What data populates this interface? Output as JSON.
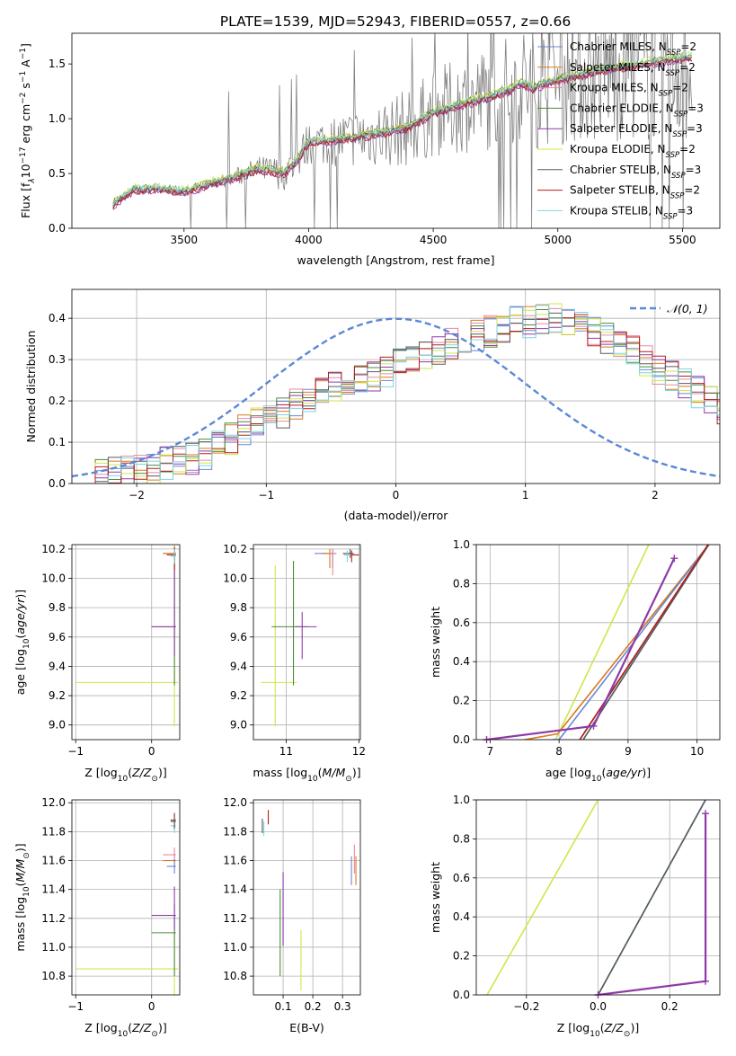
{
  "figure_title": "PLATE=1539, MJD=52943, FIBERID=0557, z=0.66",
  "colors": {
    "Chabrier MILES": "#6a87d4",
    "Salpeter MILES": "#d97a1e",
    "Kroupa MILES": "#e88aa4",
    "Chabrier ELODIE": "#4e8a3c",
    "Salpeter ELODIE": "#8e3aa8",
    "Kroupa ELODIE": "#cfe64a",
    "Chabrier STELIB": "#5a5a5a",
    "Salpeter STELIB": "#b41e1e",
    "Kroupa STELIB": "#7fd3e0",
    "normal": "#5b88d6",
    "data": "#808080"
  },
  "chart_data": [
    {
      "id": "spectrum",
      "type": "line",
      "title": "PLATE=1539, MJD=52943, FIBERID=0557, z=0.66",
      "xlabel": "wavelength [Angstrom, rest frame]",
      "ylabel": "Flux [f_λ 10^-17 erg cm^-2 s^-1 A^-1]",
      "ylabel_parts": {
        "a": "Flux [f",
        "sub": "λ",
        "b": "10",
        "sup1": "−17",
        "c": " erg cm",
        "sup2": "−2",
        "d": " s",
        "sup3": "−1",
        "e": " A",
        "sup4": "−1",
        "f": "]"
      },
      "xlim": [
        3050,
        5650
      ],
      "ylim": [
        0,
        1.78
      ],
      "xticks": [
        3500,
        4000,
        4500,
        5000,
        5500
      ],
      "yticks": [
        0.0,
        0.5,
        1.0,
        1.5
      ],
      "x_range_model": [
        3215,
        5540
      ],
      "x_range_data": [
        3215,
        5540
      ],
      "model_anchor_wavelengths": [
        3215,
        3300,
        3400,
        3500,
        3600,
        3700,
        3800,
        3900,
        3950,
        4000,
        4100,
        4200,
        4300,
        4400,
        4500,
        4600,
        4700,
        4800,
        4850,
        4900,
        5000,
        5100,
        5200,
        5300,
        5400,
        5500,
        5540
      ],
      "model_anchor_flux": [
        0.22,
        0.35,
        0.36,
        0.33,
        0.4,
        0.46,
        0.54,
        0.5,
        0.6,
        0.78,
        0.8,
        0.83,
        0.87,
        0.92,
        1.05,
        1.12,
        1.18,
        1.25,
        1.32,
        1.28,
        1.35,
        1.4,
        1.45,
        1.48,
        1.52,
        1.55,
        1.56
      ],
      "series": [
        {
          "name": "Chabrier MILES",
          "n_ssp": "2",
          "offset": 0.0
        },
        {
          "name": "Salpeter MILES",
          "n_ssp": "2",
          "offset": 0.01
        },
        {
          "name": "Kroupa MILES",
          "n_ssp": "2",
          "offset": -0.01
        },
        {
          "name": "Chabrier ELODIE",
          "n_ssp": "3",
          "offset": 0.02
        },
        {
          "name": "Salpeter ELODIE",
          "n_ssp": "3",
          "offset": -0.02
        },
        {
          "name": "Kroupa ELODIE",
          "n_ssp": "2",
          "offset": 0.03
        },
        {
          "name": "Chabrier STELIB",
          "n_ssp": "3",
          "offset": 0.0
        },
        {
          "name": "Salpeter STELIB",
          "n_ssp": "2",
          "offset": -0.015
        },
        {
          "name": "Kroupa STELIB",
          "n_ssp": "3",
          "offset": 0.015
        }
      ],
      "legend_placement": "right",
      "legend_ssp_label": "N",
      "legend_ssp_sub": "SSP",
      "grid": false
    },
    {
      "id": "residuals",
      "type": "area",
      "xlabel": "(data-model)/error",
      "ylabel": "Normed distribution",
      "xlim": [
        -2.5,
        2.5
      ],
      "ylim": [
        0,
        0.47
      ],
      "xticks": [
        -2,
        -1,
        0,
        1,
        2
      ],
      "yticks": [
        0.0,
        0.1,
        0.2,
        0.3,
        0.4
      ],
      "bin_width": 0.1,
      "normal": {
        "mean": 0,
        "sigma": 1,
        "label": "𝒩(0, 1)",
        "style": "dashed"
      },
      "hist_base": [
        0.02,
        0.02,
        0.025,
        0.03,
        0.035,
        0.04,
        0.05,
        0.055,
        0.06,
        0.07,
        0.09,
        0.11,
        0.13,
        0.15,
        0.16,
        0.17,
        0.19,
        0.2,
        0.22,
        0.23,
        0.24,
        0.25,
        0.26,
        0.27,
        0.29,
        0.3,
        0.31,
        0.32,
        0.34,
        0.35,
        0.36,
        0.37,
        0.38,
        0.39,
        0.39,
        0.4,
        0.4,
        0.39,
        0.38,
        0.37,
        0.35,
        0.34,
        0.32,
        0.3,
        0.28,
        0.26,
        0.24,
        0.22,
        0.2,
        0.18,
        0.16,
        0.14,
        0.12,
        0.11,
        0.1,
        0.09,
        0.08,
        0.07,
        0.06,
        0.05
      ],
      "hist_x_start": -2.5,
      "grid": true
    },
    {
      "id": "age_vs_Z",
      "type": "scatter",
      "xlabel": "Z [log10(Z/Z⊙)]",
      "ylabel": "age  [log10(age/yr)]",
      "xlim": [
        -1.05,
        0.37
      ],
      "ylim": [
        8.9,
        10.23
      ],
      "xticks": [
        -1,
        0
      ],
      "yticks": [
        9.0,
        9.2,
        9.4,
        9.6,
        9.8,
        10.0,
        10.2
      ],
      "points": [
        {
          "series": "Kroupa ELODIE",
          "x": 0.3,
          "y": 9.29,
          "xerr": [
            1.3,
            0.05
          ],
          "yerr": [
            0.3,
            1.0
          ]
        },
        {
          "series": "Chabrier ELODIE",
          "x": 0.3,
          "y": 9.67,
          "xerr": [
            0.3,
            0.02
          ],
          "yerr": [
            0.4,
            0.5
          ]
        },
        {
          "series": "Salpeter ELODIE",
          "x": 0.3,
          "y": 9.67,
          "xerr": [
            0.3,
            0.02
          ],
          "yerr": [
            0.2,
            0.5
          ]
        },
        {
          "series": "Chabrier MILES",
          "x": 0.3,
          "y": 10.17,
          "xerr": [
            0.15,
            0.02
          ],
          "yerr": [
            0.05,
            0.05
          ]
        },
        {
          "series": "Salpeter MILES",
          "x": 0.3,
          "y": 10.17,
          "xerr": [
            0.15,
            0.02
          ],
          "yerr": [
            0.05,
            0.05
          ]
        },
        {
          "series": "Salpeter STELIB",
          "x": 0.3,
          "y": 10.16,
          "xerr": [
            0.1,
            0.02
          ],
          "yerr": [
            0.1,
            0.05
          ]
        },
        {
          "series": "Kroupa STELIB",
          "x": 0.3,
          "y": 10.15,
          "xerr": [
            0.05,
            0.02
          ],
          "yerr": [
            0.05,
            0.05
          ]
        }
      ],
      "grid": true
    },
    {
      "id": "age_vs_mass",
      "type": "scatter",
      "xlabel": "mass [log10(M/M⊙)]",
      "ylabel": "",
      "xlim": [
        10.55,
        12.02
      ],
      "ylim": [
        8.9,
        10.23
      ],
      "xticks": [
        11,
        12
      ],
      "yticks": [
        9.0,
        9.2,
        9.4,
        9.6,
        9.8,
        10.0,
        10.2
      ],
      "points": [
        {
          "series": "Kroupa ELODIE",
          "x": 10.85,
          "y": 9.29,
          "xerr": [
            0.2,
            0.3
          ],
          "yerr": [
            0.3,
            0.8
          ]
        },
        {
          "series": "Chabrier ELODIE",
          "x": 11.1,
          "y": 9.67,
          "xerr": [
            0.3,
            0.2
          ],
          "yerr": [
            0.4,
            0.45
          ]
        },
        {
          "series": "Salpeter ELODIE",
          "x": 11.22,
          "y": 9.67,
          "xerr": [
            0.1,
            0.2
          ],
          "yerr": [
            0.22,
            0.1
          ]
        },
        {
          "series": "Chabrier MILES",
          "x": 11.64,
          "y": 10.17,
          "xerr": [
            0.25,
            0.05
          ],
          "yerr": [
            0.1,
            0.03
          ]
        },
        {
          "series": "Salpeter MILES",
          "x": 11.6,
          "y": 10.17,
          "xerr": [
            0.1,
            0.05
          ],
          "yerr": [
            0.1,
            0.03
          ]
        },
        {
          "series": "Kroupa MILES",
          "x": 11.64,
          "y": 10.17,
          "xerr": [
            0.05,
            0.05
          ],
          "yerr": [
            0.15,
            0.03
          ]
        },
        {
          "series": "Salpeter STELIB",
          "x": 11.9,
          "y": 10.16,
          "xerr": [
            0.1,
            0.1
          ],
          "yerr": [
            0.05,
            0.03
          ]
        },
        {
          "series": "Chabrier STELIB",
          "x": 11.88,
          "y": 10.17,
          "xerr": [
            0.1,
            0.05
          ],
          "yerr": [
            0.03,
            0.03
          ]
        },
        {
          "series": "Kroupa STELIB",
          "x": 11.84,
          "y": 10.16,
          "xerr": [
            0.05,
            0.05
          ],
          "yerr": [
            0.05,
            0.03
          ]
        }
      ],
      "grid": true
    },
    {
      "id": "mass_weight_vs_age",
      "type": "line",
      "xlabel": "age  [log10(age/yr)]",
      "ylabel": "mass weight",
      "xlim": [
        6.8,
        10.33
      ],
      "ylim": [
        0,
        1.0
      ],
      "xticks": [
        7,
        8,
        9,
        10
      ],
      "yticks": [
        0.0,
        0.2,
        0.4,
        0.6,
        0.8,
        1.0
      ],
      "series": [
        {
          "name": "Kroupa ELODIE",
          "x": [
            7.95,
            9.3
          ],
          "y": [
            0.0,
            1.0
          ]
        },
        {
          "name": "Salpeter MILES",
          "x": [
            7.5,
            7.98,
            10.17
          ],
          "y": [
            0.0,
            0.03,
            1.0
          ]
        },
        {
          "name": "Chabrier MILES",
          "x": [
            7.9,
            8.0,
            10.17
          ],
          "y": [
            0.0,
            0.0,
            1.0
          ]
        },
        {
          "name": "Chabrier ELODIE",
          "x": [
            8.3,
            10.17
          ],
          "y": [
            0.0,
            1.0
          ]
        },
        {
          "name": "Kroupa STELIB",
          "x": [
            8.35,
            10.16
          ],
          "y": [
            0.0,
            1.0
          ]
        },
        {
          "name": "Chabrier STELIB",
          "x": [
            8.35,
            10.17
          ],
          "y": [
            0.0,
            1.0
          ]
        },
        {
          "name": "Salpeter STELIB",
          "x": [
            8.3,
            10.16
          ],
          "y": [
            0.0,
            1.0
          ]
        },
        {
          "name": "Salpeter ELODIE",
          "x": [
            6.95,
            8.5,
            9.67
          ],
          "y": [
            0.0,
            0.07,
            0.93
          ],
          "markers": true
        }
      ],
      "grid": true
    },
    {
      "id": "mass_vs_Z",
      "type": "scatter",
      "xlabel": "Z [log10(Z/Z⊙)]",
      "ylabel": "mass [log10(M/M⊙)]",
      "xlim": [
        -1.05,
        0.37
      ],
      "ylim": [
        10.67,
        12.02
      ],
      "xticks": [
        -1,
        0
      ],
      "yticks": [
        10.8,
        11.0,
        11.2,
        11.4,
        11.6,
        11.8,
        12.0
      ],
      "points": [
        {
          "series": "Kroupa ELODIE",
          "x": 0.3,
          "y": 10.85,
          "xerr": [
            1.3,
            0.05
          ],
          "yerr": [
            0.2,
            0.3
          ]
        },
        {
          "series": "Chabrier ELODIE",
          "x": 0.3,
          "y": 11.1,
          "xerr": [
            0.3,
            0.02
          ],
          "yerr": [
            0.3,
            0.2
          ]
        },
        {
          "series": "Salpeter ELODIE",
          "x": 0.3,
          "y": 11.22,
          "xerr": [
            0.3,
            0.02
          ],
          "yerr": [
            0.1,
            0.2
          ]
        },
        {
          "series": "Salpeter MILES",
          "x": 0.3,
          "y": 11.6,
          "xerr": [
            0.15,
            0.02
          ],
          "yerr": [
            0.05,
            0.05
          ]
        },
        {
          "series": "Kroupa MILES",
          "x": 0.3,
          "y": 11.64,
          "xerr": [
            0.15,
            0.02
          ],
          "yerr": [
            0.05,
            0.05
          ]
        },
        {
          "series": "Chabrier MILES",
          "x": 0.3,
          "y": 11.56,
          "xerr": [
            0.1,
            0.02
          ],
          "yerr": [
            0.05,
            0.05
          ]
        },
        {
          "series": "Salpeter STELIB",
          "x": 0.3,
          "y": 11.88,
          "xerr": [
            0.05,
            0.02
          ],
          "yerr": [
            0.05,
            0.05
          ]
        },
        {
          "series": "Kroupa STELIB",
          "x": 0.3,
          "y": 11.84,
          "xerr": [
            0.05,
            0.02
          ],
          "yerr": [
            0.05,
            0.05
          ]
        },
        {
          "series": "Chabrier STELIB",
          "x": 0.3,
          "y": 11.87,
          "xerr": [
            0.05,
            0.02
          ],
          "yerr": [
            0.05,
            0.05
          ]
        }
      ],
      "grid": true
    },
    {
      "id": "mass_vs_ebv",
      "type": "scatter",
      "xlabel": "E(B-V)",
      "ylabel": "",
      "xlim": [
        0.0,
        0.36
      ],
      "ylim": [
        10.67,
        12.02
      ],
      "xticks": [
        0.1,
        0.2,
        0.3
      ],
      "yticks": [
        10.8,
        11.0,
        11.2,
        11.4,
        11.6,
        11.8,
        12.0
      ],
      "points": [
        {
          "series": "Kroupa ELODIE",
          "x": 0.16,
          "y": 10.9,
          "yerr": [
            0.2,
            0.22
          ]
        },
        {
          "series": "Chabrier ELODIE",
          "x": 0.09,
          "y": 11.1,
          "yerr": [
            0.3,
            0.3
          ]
        },
        {
          "series": "Salpeter ELODIE",
          "x": 0.1,
          "y": 11.26,
          "yerr": [
            0.25,
            0.26
          ]
        },
        {
          "series": "Chabrier MILES",
          "x": 0.33,
          "y": 11.53,
          "yerr": [
            0.1,
            0.1
          ]
        },
        {
          "series": "Salpeter MILES",
          "x": 0.345,
          "y": 11.53,
          "yerr": [
            0.1,
            0.1
          ]
        },
        {
          "series": "Kroupa MILES",
          "x": 0.34,
          "y": 11.61,
          "yerr": [
            0.1,
            0.1
          ]
        },
        {
          "series": "Salpeter STELIB",
          "x": 0.05,
          "y": 11.9,
          "yerr": [
            0.05,
            0.05
          ]
        },
        {
          "series": "Chabrier STELIB",
          "x": 0.03,
          "y": 11.84,
          "yerr": [
            0.05,
            0.05
          ]
        },
        {
          "series": "Kroupa STELIB",
          "x": 0.035,
          "y": 11.82,
          "yerr": [
            0.05,
            0.05
          ]
        }
      ],
      "grid": true
    },
    {
      "id": "mass_weight_vs_Z",
      "type": "line",
      "xlabel": "Z [log10(Z/Z⊙)]",
      "ylabel": "mass weight",
      "xlim": [
        -0.34,
        0.34
      ],
      "ylim": [
        0,
        1.0
      ],
      "xticks": [
        -0.2,
        0.0,
        0.2
      ],
      "yticks": [
        0.0,
        0.2,
        0.4,
        0.6,
        0.8,
        1.0
      ],
      "series": [
        {
          "name": "Kroupa ELODIE",
          "x": [
            -0.31,
            0.0
          ],
          "y": [
            0.0,
            1.0
          ]
        },
        {
          "name": "Chabrier MILES",
          "x": [
            0.0,
            0.3
          ],
          "y": [
            0.0,
            1.0
          ]
        },
        {
          "name": "Kroupa STELIB",
          "x": [
            0.0,
            0.3
          ],
          "y": [
            0.0,
            1.0
          ]
        },
        {
          "name": "Chabrier STELIB",
          "x": [
            0.0,
            0.3
          ],
          "y": [
            0.0,
            1.0
          ]
        },
        {
          "name": "Salpeter ELODIE",
          "x": [
            0.0,
            0.3,
            0.3
          ],
          "y": [
            0.0,
            0.07,
            0.93
          ],
          "markers": true
        }
      ],
      "grid": true
    }
  ],
  "tick_labels": {
    "log_sub": "10",
    "sun": "⊙"
  }
}
